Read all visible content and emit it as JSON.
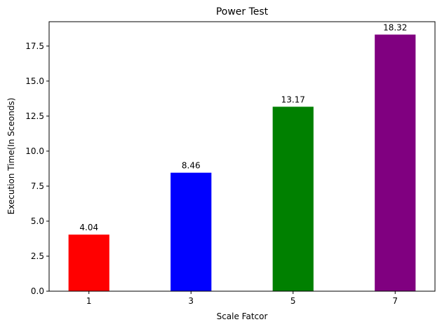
{
  "chart_data": {
    "type": "bar",
    "title": "Power Test",
    "xlabel": "Scale Fatcor",
    "ylabel": "Execution Time(In Sceonds)",
    "categories": [
      "1",
      "3",
      "5",
      "7"
    ],
    "values": [
      4.04,
      8.46,
      13.17,
      18.32
    ],
    "value_labels": [
      "4.04",
      "8.46",
      "13.17",
      "18.32"
    ],
    "colors": [
      "#ff0000",
      "#0000ff",
      "#008000",
      "#800080"
    ],
    "ylim": [
      0,
      19.24
    ],
    "yticks": [
      0.0,
      2.5,
      5.0,
      7.5,
      10.0,
      12.5,
      15.0,
      17.5
    ],
    "ytick_labels": [
      "0.0",
      "2.5",
      "5.0",
      "7.5",
      "10.0",
      "12.5",
      "15.0",
      "17.5"
    ],
    "grid": false,
    "legend": "none"
  }
}
